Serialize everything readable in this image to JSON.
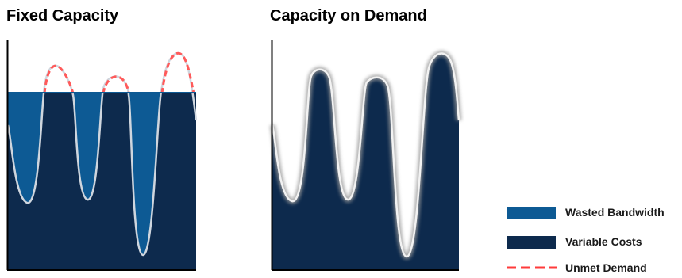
{
  "titles": {
    "fixed": "Fixed Capacity",
    "demand": "Capacity on Demand"
  },
  "colors": {
    "wasted_bandwidth": "#0d5a94",
    "variable_costs": "#0d2a4d",
    "unmet_demand": "#ff5a5a",
    "demand_curve": "#cfd6de",
    "axis": "#000000"
  },
  "legend": [
    {
      "label": "Wasted Bandwidth",
      "kind": "swatch",
      "color": "#0d5a94"
    },
    {
      "label": "Variable Costs",
      "kind": "swatch",
      "color": "#0d2a4d"
    },
    {
      "label": "Unmet Demand",
      "kind": "dashed",
      "color": "#ff3b3b"
    }
  ]
}
